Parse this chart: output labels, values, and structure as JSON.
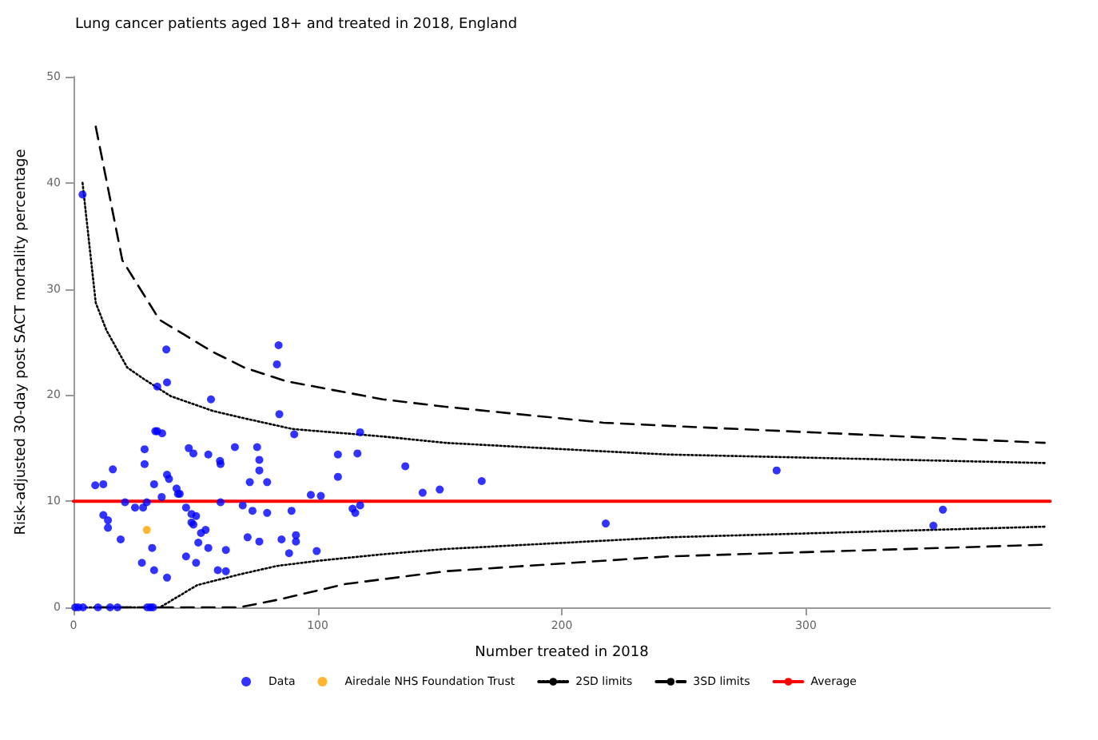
{
  "chart_data": {
    "type": "scatter",
    "title": "Lung cancer patients aged 18+ and treated in 2018, England",
    "xlabel": "Number treated in 2018",
    "ylabel": "Risk-adjusted 30-day post SACT mortality percentage",
    "xlim": [
      0,
      400
    ],
    "xticks": [
      0,
      100,
      200,
      300
    ],
    "ylim": [
      0,
      50
    ],
    "yticks": [
      0,
      10,
      20,
      30,
      40,
      50
    ],
    "grid": false,
    "legend": "bottom",
    "marker": "circle",
    "series": [
      {
        "name": "Data",
        "color": "#0000ff",
        "x": [
          0.7,
          2,
          3.9,
          10,
          15,
          18,
          30.2,
          31.5,
          32.6,
          3.7,
          38,
          84,
          8.9,
          12.2,
          16.1,
          12.2,
          14.1,
          14.1,
          19.3,
          21.1,
          25.2,
          28.5,
          30,
          29.1,
          29.1,
          32.2,
          28,
          33,
          38.3,
          34.3,
          38.3,
          33.5,
          34.3,
          36.3,
          33,
          36.1,
          38.3,
          39.1,
          42.2,
          42.8,
          43.5,
          46.1,
          48.3,
          50.2,
          48.3,
          49.1,
          52.2,
          54.1,
          51.1,
          55.2,
          46.1,
          50.2,
          59.1,
          62.4,
          62.4,
          47.2,
          49.1,
          55.2,
          60,
          60.2,
          56.3,
          66.1,
          60.2,
          69.3,
          72.2,
          73.3,
          75.2,
          76.1,
          76.1,
          79.3,
          79.3,
          71.3,
          76.1,
          85.2,
          83.3,
          84.3,
          90.4,
          89.3,
          91.1,
          91.1,
          88.3,
          97.2,
          101.3,
          99.6,
          108.3,
          108.3,
          114.3,
          115.4,
          116.3,
          117.4,
          117.4,
          135.9,
          143,
          150,
          167.2,
          218,
          288,
          352.2,
          356.1
        ],
        "values": [
          0,
          0,
          0,
          0,
          0,
          0,
          0,
          0,
          0,
          38.9,
          24.3,
          24.7,
          11.5,
          11.6,
          13,
          8.7,
          8.2,
          7.5,
          6.4,
          9.9,
          9.4,
          9.4,
          9.9,
          14.9,
          13.5,
          5.6,
          4.2,
          3.5,
          2.8,
          20.8,
          21.2,
          16.6,
          16.6,
          16.4,
          11.6,
          10.4,
          12.5,
          12.1,
          11.2,
          10.7,
          10.7,
          9.4,
          8.8,
          8.6,
          8,
          7.8,
          7,
          7.3,
          6.1,
          5.6,
          4.8,
          4.2,
          3.5,
          3.4,
          5.4,
          15,
          14.5,
          14.4,
          13.8,
          13.5,
          19.6,
          15.1,
          9.9,
          9.6,
          11.8,
          9.1,
          15.1,
          13.9,
          12.9,
          11.8,
          8.9,
          6.6,
          6.2,
          6.4,
          22.9,
          18.2,
          16.3,
          9.1,
          6.8,
          6.2,
          5.1,
          10.6,
          10.5,
          5.3,
          14.4,
          12.3,
          9.3,
          8.9,
          14.5,
          9.6,
          16.5,
          13.3,
          10.8,
          11.1,
          11.9,
          7.9,
          12.9,
          7.7,
          9.2
        ]
      },
      {
        "name": "Airedale NHS Foundation Trust",
        "color": "#ffa500",
        "x": [
          30
        ],
        "values": [
          7.3
        ]
      },
      {
        "name": "2SD limits",
        "type": "line",
        "color": "#000000",
        "line_style": "dotted",
        "marker": "none",
        "x": [
          3.7,
          9.1,
          13.5,
          22,
          28.9,
          39.8,
          57.2,
          70.2,
          89.8,
          126.7,
          152.4,
          217,
          243.7,
          397.8
        ],
        "values": [
          40,
          28.7,
          26.1,
          22.6,
          21.5,
          19.9,
          18.5,
          17.8,
          16.8,
          16.1,
          15.5,
          14.7,
          14.4,
          13.6
        ]
      },
      {
        "type": "line",
        "color": "#000000",
        "line_style": "dotted",
        "marker": "none",
        "x": [
          5,
          35.4,
          50.7,
          68,
          83.3,
          100.7,
          126.7,
          152.4,
          243.7,
          397.8
        ],
        "values": [
          0,
          0,
          2.1,
          3.1,
          3.9,
          4.4,
          5,
          5.5,
          6.6,
          7.6
        ]
      },
      {
        "name": "3SD limits",
        "type": "line",
        "color": "#000000",
        "line_style": "dashed",
        "marker": "none",
        "x": [
          9.1,
          20,
          35.2,
          56.8,
          69.9,
          87.2,
          126.7,
          152.4,
          217,
          243.7,
          397.8
        ],
        "values": [
          45.3,
          32.7,
          27.1,
          24.1,
          22.6,
          21.3,
          19.6,
          18.9,
          17.4,
          17.1,
          15.5
        ]
      },
      {
        "type": "line",
        "color": "#000000",
        "line_style": "dashed",
        "marker": "none",
        "x": [
          10,
          68,
          83.3,
          111.5,
          152.4,
          243.7,
          397.8
        ],
        "values": [
          0,
          0,
          0.7,
          2.2,
          3.4,
          4.8,
          5.9
        ]
      },
      {
        "name": "Average",
        "type": "line",
        "color": "#ff0000",
        "line_style": "solid",
        "marker": "none",
        "x": [
          0,
          400
        ],
        "values": [
          10,
          10
        ]
      }
    ]
  }
}
